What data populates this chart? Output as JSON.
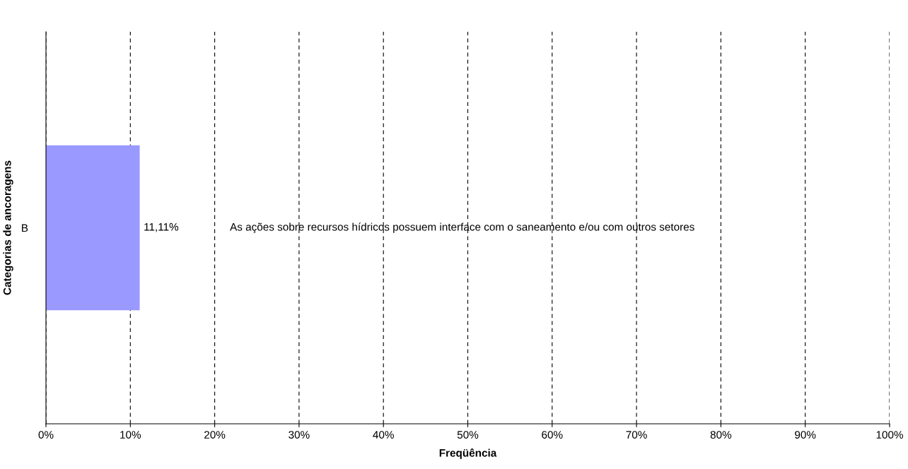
{
  "chart_data": {
    "type": "bar",
    "orientation": "horizontal",
    "xlabel": "Freqüência",
    "ylabel": "Categorias de ancoragens",
    "categories": [
      "B"
    ],
    "values": [
      11.11
    ],
    "color": "#9999ff",
    "value_labels": [
      "11,11%"
    ],
    "xlim": [
      0,
      100
    ],
    "xticks": [
      {
        "value": 0,
        "label": "0%"
      },
      {
        "value": 10,
        "label": "10%"
      },
      {
        "value": 20,
        "label": "20%"
      },
      {
        "value": 30,
        "label": "30%"
      },
      {
        "value": 40,
        "label": "40%"
      },
      {
        "value": 50,
        "label": "50%"
      },
      {
        "value": 60,
        "label": "60%"
      },
      {
        "value": 70,
        "label": "70%"
      },
      {
        "value": 80,
        "label": "80%"
      },
      {
        "value": 90,
        "label": "90%"
      },
      {
        "value": 100,
        "label": "100%"
      }
    ],
    "grid": "x",
    "line_style": "dashed",
    "annotations": [
      "As ações sobre recursos hídricos possuem interface com o saneamento e/ou com outros setores"
    ]
  }
}
